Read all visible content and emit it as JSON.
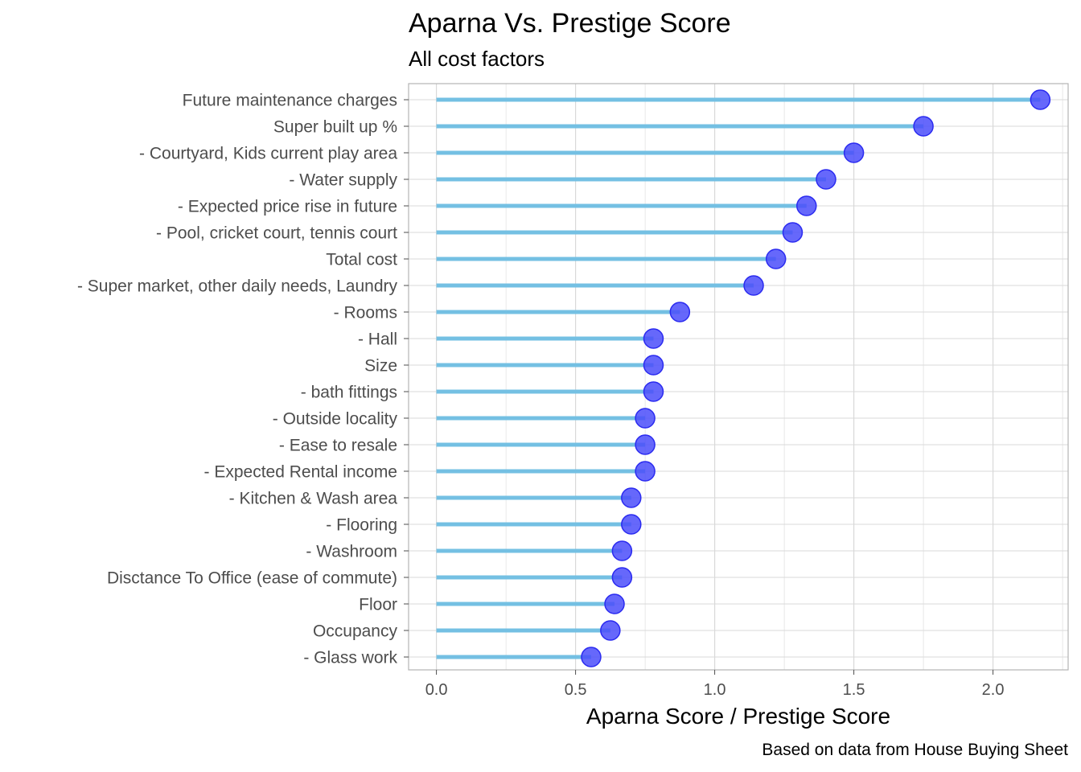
{
  "chart_data": {
    "type": "lollipop",
    "title": "Aparna Vs. Prestige Score",
    "subtitle": "All cost factors",
    "xlabel": "Aparna Score / Prestige Score",
    "caption": "Based on data from House Buying Sheet",
    "xlim": [
      -0.1,
      2.27
    ],
    "x_ticks": [
      "0.0",
      "0.5",
      "1.0",
      "1.5",
      "2.0"
    ],
    "x_tick_values": [
      0,
      0.5,
      1.0,
      1.5,
      2.0
    ],
    "grid": true,
    "colors": {
      "stem": "#74c0e3",
      "point": "#4b4dfa",
      "point_stroke": "#2b2bf0",
      "grid": "#d9d9d9",
      "panel_border": "#b3b3b3"
    },
    "categories": [
      "Future maintenance charges",
      "Super built up %",
      "- Courtyard, Kids current play area",
      "- Water supply",
      "- Expected price rise in future",
      "- Pool, cricket court, tennis court",
      "Total cost",
      "- Super market, other daily needs, Laundry",
      "- Rooms",
      "- Hall",
      "Size",
      "- bath fittings",
      "- Outside locality",
      "- Ease to resale",
      "- Expected Rental income",
      "- Kitchen & Wash area",
      "- Flooring",
      "- Washroom",
      "Disctance To Office (ease of commute)",
      "Floor",
      "Occupancy",
      "- Glass work"
    ],
    "values": [
      2.17,
      1.75,
      1.5,
      1.4,
      1.33,
      1.28,
      1.22,
      1.14,
      0.875,
      0.78,
      0.78,
      0.78,
      0.75,
      0.75,
      0.75,
      0.7,
      0.7,
      0.667,
      0.667,
      0.64,
      0.625,
      0.556
    ]
  }
}
